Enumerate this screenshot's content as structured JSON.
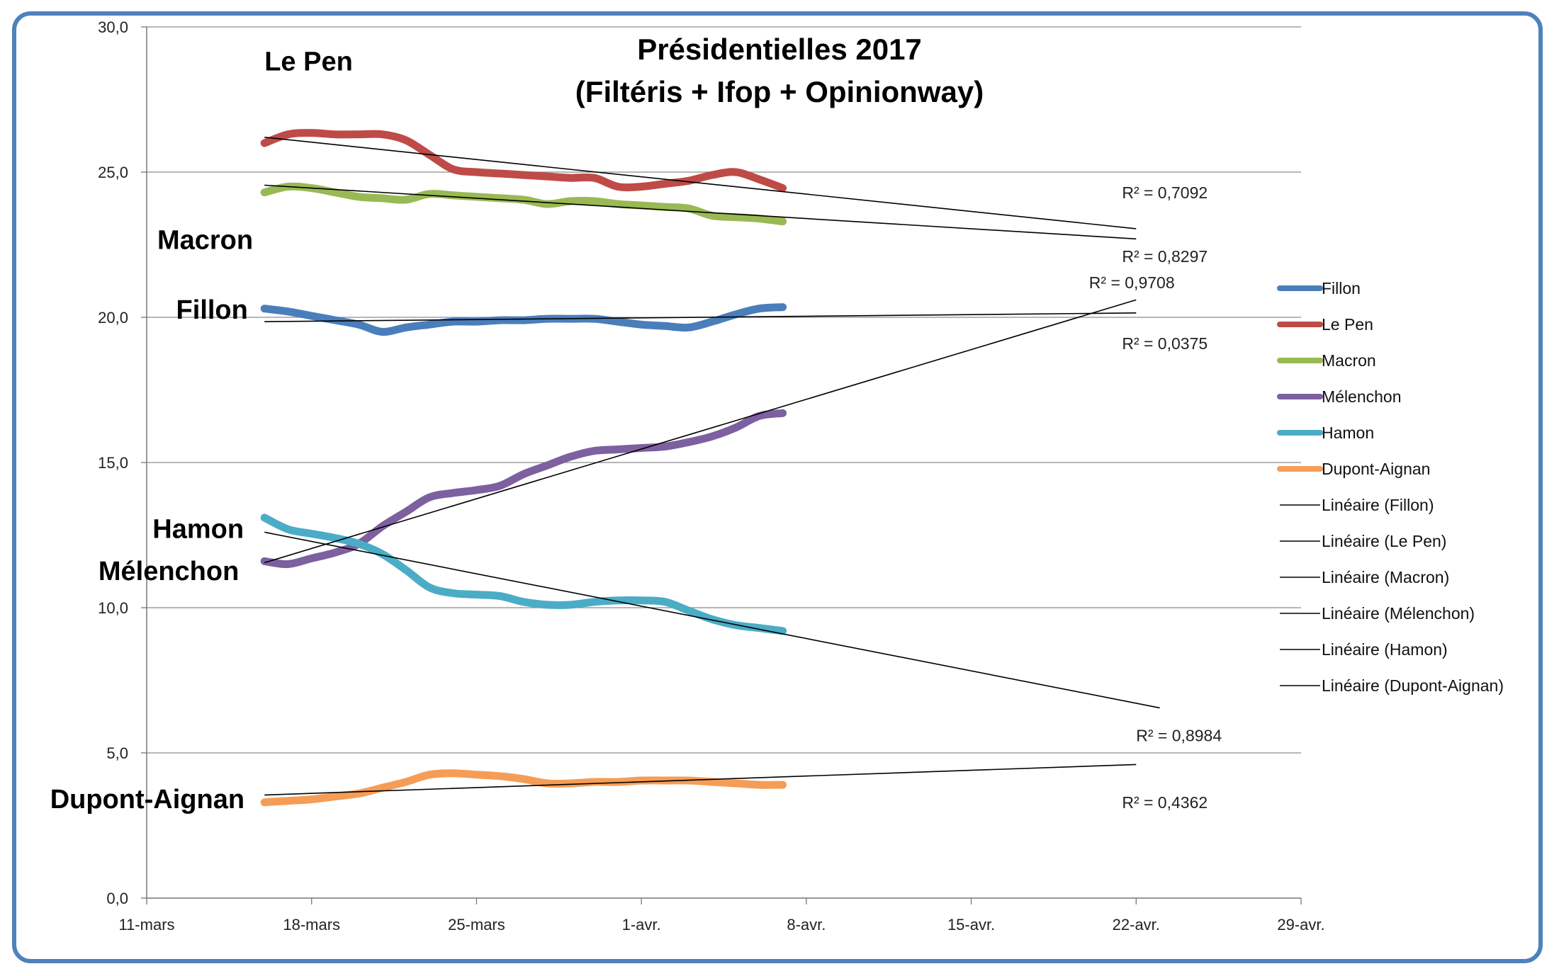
{
  "chart_data": {
    "type": "line",
    "title": "Présidentielles 2017",
    "subtitle": "(Filtéris + Ifop + Opinionway)",
    "ylim": [
      0,
      30
    ],
    "yticks": [
      "0,0",
      "5,0",
      "10,0",
      "15,0",
      "20,0",
      "25,0",
      "30,0"
    ],
    "ytick_values": [
      0,
      5,
      10,
      15,
      20,
      25,
      30
    ],
    "xlim": [
      0,
      49
    ],
    "xticks": [
      "11-mars",
      "18-mars",
      "25-mars",
      "1-avr.",
      "8-avr.",
      "15-avr.",
      "22-avr.",
      "29-avr."
    ],
    "xtick_values": [
      0,
      7,
      14,
      21,
      28,
      35,
      42,
      49
    ],
    "grid": true,
    "legend_position": "right",
    "series": [
      {
        "name": "Fillon",
        "color": "#4a7ebb",
        "x": [
          5,
          6,
          7,
          8,
          9,
          10,
          11,
          12,
          13,
          14,
          15,
          16,
          17,
          18,
          19,
          20,
          21,
          22,
          23,
          24,
          25,
          26,
          27
        ],
        "values": [
          20.3,
          20.2,
          20.05,
          19.9,
          19.75,
          19.5,
          19.65,
          19.75,
          19.85,
          19.85,
          19.9,
          19.9,
          19.95,
          19.95,
          19.95,
          19.85,
          19.75,
          19.7,
          19.65,
          19.85,
          20.1,
          20.3,
          20.35
        ]
      },
      {
        "name": "Le Pen",
        "color": "#be4b48",
        "x": [
          5,
          6,
          7,
          8,
          9,
          10,
          11,
          12,
          13,
          14,
          15,
          16,
          17,
          18,
          19,
          20,
          21,
          22,
          23,
          24,
          25,
          26,
          27
        ],
        "values": [
          26.0,
          26.3,
          26.35,
          26.3,
          26.3,
          26.3,
          26.1,
          25.6,
          25.1,
          25.0,
          24.95,
          24.9,
          24.85,
          24.8,
          24.8,
          24.5,
          24.5,
          24.6,
          24.7,
          24.9,
          25.0,
          24.75,
          24.45
        ]
      },
      {
        "name": "Macron",
        "color": "#98b954",
        "x": [
          5,
          6,
          7,
          8,
          9,
          10,
          11,
          12,
          13,
          14,
          15,
          16,
          17,
          18,
          19,
          20,
          21,
          22,
          23,
          24,
          25,
          26,
          27
        ],
        "values": [
          24.3,
          24.5,
          24.45,
          24.3,
          24.15,
          24.1,
          24.05,
          24.25,
          24.2,
          24.15,
          24.1,
          24.05,
          23.9,
          24.0,
          24.0,
          23.9,
          23.85,
          23.8,
          23.75,
          23.5,
          23.45,
          23.4,
          23.3
        ]
      },
      {
        "name": "Mélenchon",
        "color": "#7d60a0",
        "x": [
          5,
          6,
          7,
          8,
          9,
          10,
          11,
          12,
          13,
          14,
          15,
          16,
          17,
          18,
          19,
          20,
          21,
          22,
          23,
          24,
          25,
          26,
          27
        ],
        "values": [
          11.6,
          11.5,
          11.7,
          11.9,
          12.2,
          12.8,
          13.3,
          13.8,
          13.95,
          14.05,
          14.2,
          14.6,
          14.9,
          15.2,
          15.4,
          15.45,
          15.5,
          15.55,
          15.7,
          15.9,
          16.2,
          16.6,
          16.7
        ]
      },
      {
        "name": "Hamon",
        "color": "#4bacc6",
        "x": [
          5,
          6,
          7,
          8,
          9,
          10,
          11,
          12,
          13,
          14,
          15,
          16,
          17,
          18,
          19,
          20,
          21,
          22,
          23,
          24,
          25,
          26,
          27
        ],
        "values": [
          13.1,
          12.7,
          12.55,
          12.4,
          12.2,
          11.85,
          11.3,
          10.7,
          10.5,
          10.45,
          10.4,
          10.2,
          10.1,
          10.1,
          10.2,
          10.25,
          10.25,
          10.2,
          9.9,
          9.6,
          9.4,
          9.3,
          9.2
        ]
      },
      {
        "name": "Dupont-Aignan",
        "color": "#f59d56",
        "x": [
          5,
          6,
          7,
          8,
          9,
          10,
          11,
          12,
          13,
          14,
          15,
          16,
          17,
          18,
          19,
          20,
          21,
          22,
          23,
          24,
          25,
          26,
          27
        ],
        "values": [
          3.3,
          3.35,
          3.4,
          3.5,
          3.6,
          3.8,
          4.0,
          4.25,
          4.3,
          4.25,
          4.2,
          4.1,
          3.95,
          3.95,
          4.0,
          4.0,
          4.05,
          4.05,
          4.05,
          4.0,
          3.95,
          3.9,
          3.9
        ]
      }
    ],
    "trendlines": [
      {
        "name": "Linéaire (Fillon)",
        "x": [
          5,
          42
        ],
        "values": [
          19.85,
          20.15
        ],
        "r2": "R² = 0,0375"
      },
      {
        "name": "Linéaire (Le Pen)",
        "x": [
          5,
          42
        ],
        "values": [
          26.2,
          23.05
        ],
        "r2": "R² = 0,7092"
      },
      {
        "name": "Linéaire (Macron)",
        "x": [
          5,
          42
        ],
        "values": [
          24.55,
          22.7
        ],
        "r2": "R² = 0,8297"
      },
      {
        "name": "Linéaire (Mélenchon)",
        "x": [
          5,
          42
        ],
        "values": [
          11.55,
          20.6
        ],
        "r2": "R² = 0,9708"
      },
      {
        "name": "Linéaire (Hamon)",
        "x": [
          5,
          43
        ],
        "values": [
          12.6,
          6.55
        ],
        "r2": "R² = 0,8984"
      },
      {
        "name": "Linéaire (Dupont-Aignan)",
        "x": [
          5,
          42
        ],
        "values": [
          3.55,
          4.6
        ],
        "r2": "R² = 0,4362"
      }
    ],
    "r2_label_positions": [
      {
        "text": "R² = 0,7092",
        "x": 41.4,
        "y": 24.1
      },
      {
        "text": "R² = 0,8297",
        "x": 41.4,
        "y": 21.9
      },
      {
        "text": "R² = 0,9708",
        "x": 40.0,
        "y": 21.0
      },
      {
        "text": "R² = 0,0375",
        "x": 41.4,
        "y": 18.9
      },
      {
        "text": "R² = 0,8984",
        "x": 42.0,
        "y": 5.4
      },
      {
        "text": "R² = 0,4362",
        "x": 41.4,
        "y": 3.1
      }
    ],
    "annotations": [
      {
        "text": "Le Pen",
        "x": 5.0,
        "y": 28.5
      },
      {
        "text": "Macron",
        "x": 0.45,
        "y": 22.35
      },
      {
        "text": "Fillon",
        "x": 1.25,
        "y": 19.95
      },
      {
        "text": "Hamon",
        "x": 0.25,
        "y": 12.4
      },
      {
        "text": "Mélenchon",
        "x": -2.05,
        "y": 10.95
      },
      {
        "text": "Dupont-Aignan",
        "x": -4.1,
        "y": 3.1
      }
    ]
  }
}
